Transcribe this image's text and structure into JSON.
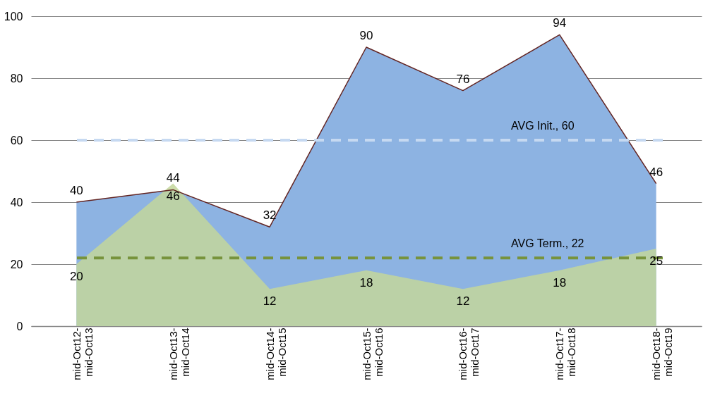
{
  "chart_data": {
    "type": "area",
    "categories": [
      "mid-Oct12-\nmid-Oct13",
      "mid-Oct13-\nmid-Oct14",
      "mid-Oct14-\nmid-Oct15",
      "mid-Oct15-\nmid-Oct16",
      "mid-Oct16-\nmid-Oct17",
      "mid-Oct17-\nmid-Oct18",
      "mid-Oct18-\nmid-Oct19"
    ],
    "series": [
      {
        "color": "#8db3e2",
        "values": [
          40,
          44,
          32,
          90,
          76,
          94,
          46
        ]
      },
      {
        "color": "#c3d69b",
        "values": [
          20,
          46,
          12,
          18,
          12,
          18,
          25
        ]
      }
    ],
    "ylim": [
      0,
      100
    ],
    "yticks": [
      0,
      20,
      40,
      60,
      80,
      100
    ],
    "grid": "y",
    "data_labels": true,
    "ref_lines": [
      {
        "axis": "y",
        "value": 60,
        "label": "AVG Init., 60",
        "color": "#c6d9f1",
        "line_style": "dashed"
      },
      {
        "axis": "y",
        "value": 22,
        "label": "AVG Term., 22",
        "color": "#77933c",
        "line_style": "dashed"
      }
    ]
  }
}
